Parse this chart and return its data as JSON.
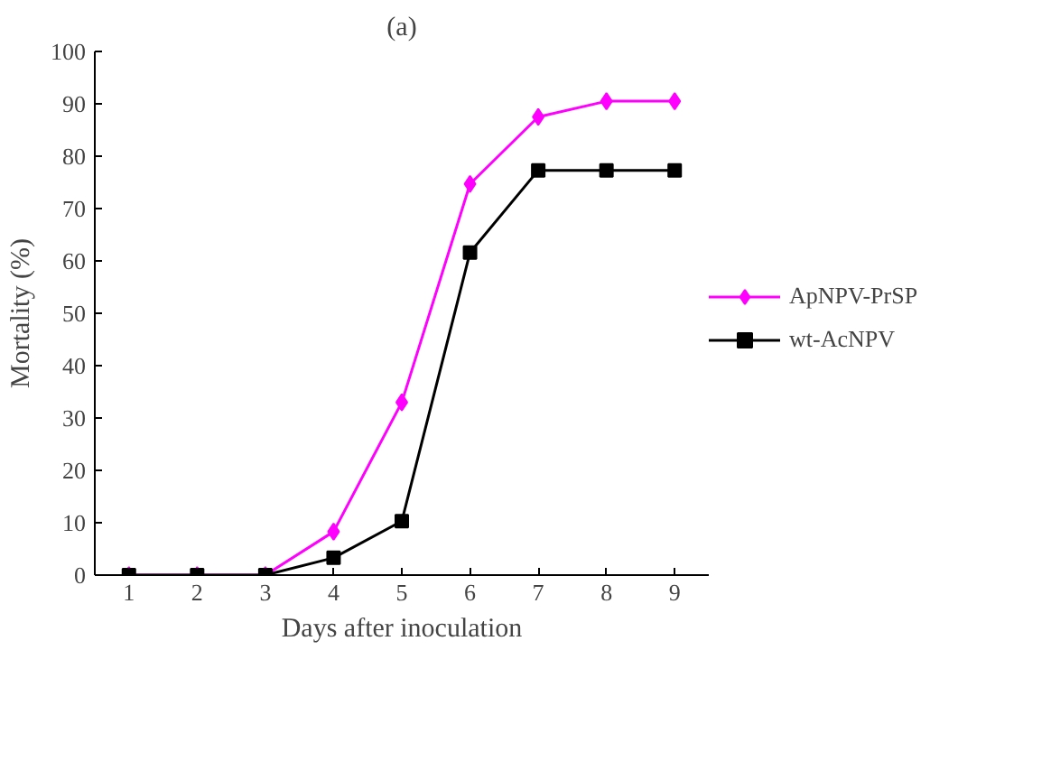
{
  "chart_data": {
    "type": "line",
    "title": "(a)",
    "xlabel": "Days after inoculation",
    "ylabel": "Mortality (%)",
    "categories": [
      "1",
      "2",
      "3",
      "4",
      "5",
      "6",
      "7",
      "8",
      "9"
    ],
    "series": [
      {
        "name": "ApNPV-PrSP",
        "color": "#ff00ff",
        "marker": "diamond",
        "values": [
          0,
          0,
          0,
          8.3,
          33,
          74.7,
          87.5,
          90.5,
          90.5
        ]
      },
      {
        "name": "wt-AcNPV",
        "color": "#000000",
        "marker": "square",
        "values": [
          0,
          0,
          0,
          3.3,
          10.3,
          61.6,
          77.3,
          77.3,
          77.3
        ]
      }
    ],
    "ylim": [
      0,
      100
    ],
    "yticks": [
      0,
      10,
      20,
      30,
      40,
      50,
      60,
      70,
      80,
      90,
      100
    ],
    "grid": false,
    "legend": "right"
  }
}
